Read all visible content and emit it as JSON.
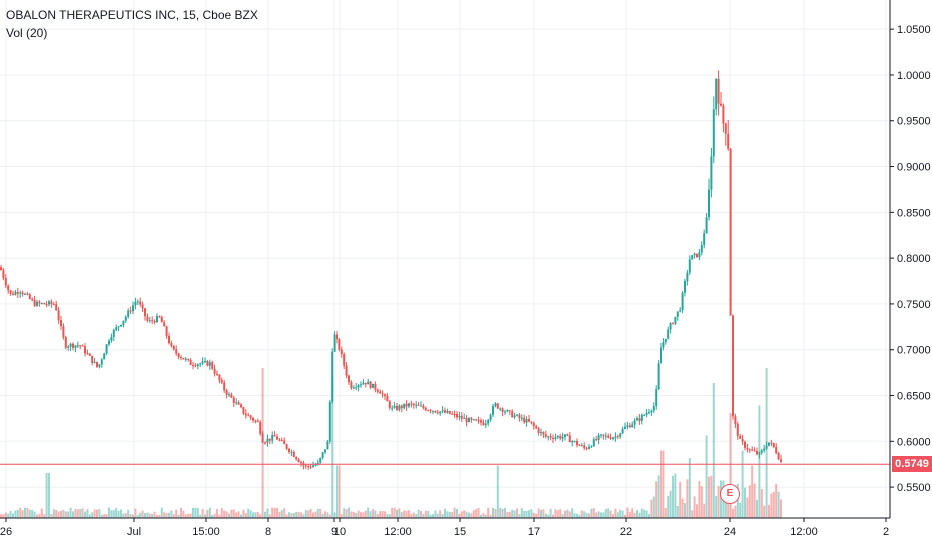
{
  "header": {
    "title": "OBALON THERAPEUTICS INC, 15, Cboe BZX",
    "volume_label": "Vol (20)"
  },
  "colors": {
    "up": "#26a69a",
    "down": "#ef5350",
    "grid": "#eef0f3",
    "price_line": "#f0515f",
    "axis_border": "#131722"
  },
  "last_price": "0.5749",
  "earnings_marker": "E",
  "chart_data": {
    "type": "candlestick",
    "title": "OBALON THERAPEUTICS INC, 15, Cboe BZX",
    "ylim": [
      0.525,
      1.06
    ],
    "y_ticks": [
      "1.0500",
      "1.0000",
      "0.9500",
      "0.9000",
      "0.8500",
      "0.8000",
      "0.7500",
      "0.7000",
      "0.6500",
      "0.6000",
      "0.5500"
    ],
    "x_ticks": [
      "26",
      "Jul",
      "15:00",
      "8",
      "9",
      "10",
      "12:00",
      "15",
      "17",
      "22",
      "24",
      "12:00",
      "2"
    ],
    "last_price": 0.5749,
    "anchors": [
      [
        0,
        0.79
      ],
      [
        10,
        0.76
      ],
      [
        20,
        0.765
      ],
      [
        35,
        0.75
      ],
      [
        55,
        0.75
      ],
      [
        65,
        0.705
      ],
      [
        80,
        0.705
      ],
      [
        98,
        0.68
      ],
      [
        110,
        0.715
      ],
      [
        125,
        0.735
      ],
      [
        137,
        0.755
      ],
      [
        148,
        0.73
      ],
      [
        160,
        0.735
      ],
      [
        172,
        0.7
      ],
      [
        190,
        0.685
      ],
      [
        210,
        0.685
      ],
      [
        225,
        0.655
      ],
      [
        245,
        0.63
      ],
      [
        258,
        0.62
      ],
      [
        263,
        0.6
      ],
      [
        275,
        0.605
      ],
      [
        290,
        0.59
      ],
      [
        305,
        0.572
      ],
      [
        318,
        0.575
      ],
      [
        328,
        0.6
      ],
      [
        333,
        0.72
      ],
      [
        340,
        0.7
      ],
      [
        350,
        0.66
      ],
      [
        365,
        0.665
      ],
      [
        380,
        0.655
      ],
      [
        392,
        0.635
      ],
      [
        410,
        0.64
      ],
      [
        430,
        0.635
      ],
      [
        450,
        0.63
      ],
      [
        470,
        0.622
      ],
      [
        485,
        0.62
      ],
      [
        495,
        0.64
      ],
      [
        510,
        0.63
      ],
      [
        530,
        0.62
      ],
      [
        545,
        0.605
      ],
      [
        565,
        0.605
      ],
      [
        585,
        0.592
      ],
      [
        600,
        0.605
      ],
      [
        615,
        0.605
      ],
      [
        625,
        0.615
      ],
      [
        640,
        0.625
      ],
      [
        655,
        0.64
      ],
      [
        660,
        0.7
      ],
      [
        670,
        0.725
      ],
      [
        680,
        0.745
      ],
      [
        690,
        0.8
      ],
      [
        700,
        0.805
      ],
      [
        708,
        0.85
      ],
      [
        712,
        0.93
      ],
      [
        716,
        1.0
      ],
      [
        722,
        0.95
      ],
      [
        728,
        0.94
      ],
      [
        732,
        0.63
      ],
      [
        740,
        0.6
      ],
      [
        750,
        0.59
      ],
      [
        760,
        0.585
      ],
      [
        768,
        0.6
      ],
      [
        775,
        0.592
      ],
      [
        782,
        0.575
      ]
    ],
    "volume_spikes": [
      [
        48,
        0.3
      ],
      [
        262,
        1.0
      ],
      [
        332,
        0.95
      ],
      [
        338,
        0.35
      ],
      [
        498,
        0.35
      ],
      [
        662,
        0.45
      ],
      [
        690,
        0.4
      ],
      [
        707,
        0.55
      ],
      [
        713,
        0.9
      ],
      [
        722,
        0.25
      ],
      [
        731,
        0.7
      ],
      [
        742,
        0.45
      ],
      [
        752,
        0.35
      ],
      [
        760,
        0.75
      ],
      [
        766,
        1.0
      ]
    ]
  }
}
